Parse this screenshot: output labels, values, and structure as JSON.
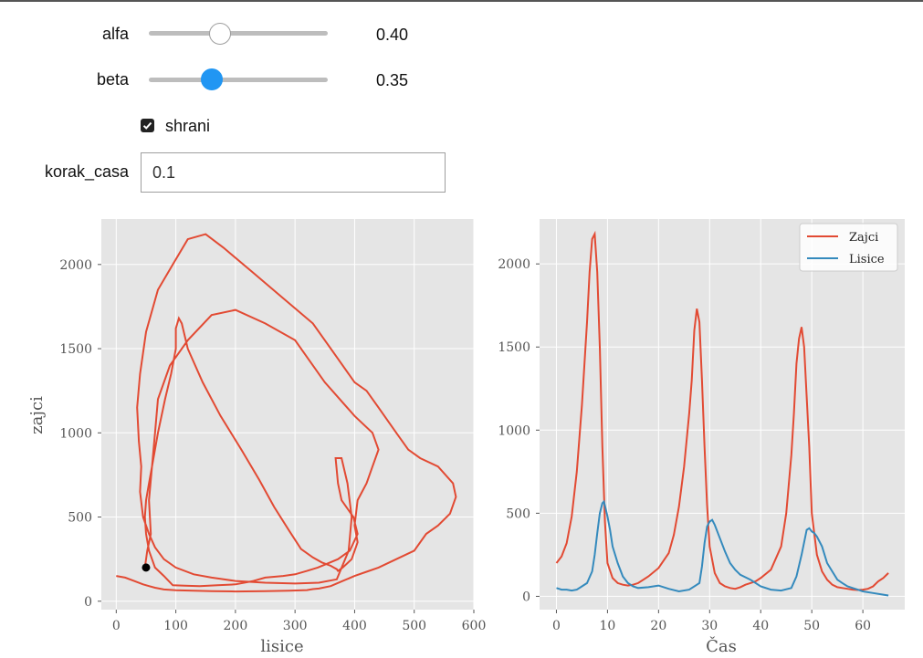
{
  "controls": {
    "alfa": {
      "label": "alfa",
      "value": 0.4,
      "value_text": "0.40",
      "min": 0,
      "max": 1
    },
    "beta": {
      "label": "beta",
      "value": 0.35,
      "value_text": "0.35",
      "min": 0,
      "max": 1
    },
    "shrani": {
      "label": "shrani",
      "checked": true
    },
    "korak_casa": {
      "label": "korak_casa",
      "value": "0.1"
    }
  },
  "colors": {
    "zajci": "#e24a33",
    "lisice": "#348abd",
    "plot_bg": "#e5e5e5",
    "grid": "#ffffff",
    "slider_active": "#2196f3"
  },
  "chart_data": [
    {
      "type": "line",
      "xlabel": "lisice",
      "ylabel": "zajci",
      "xlim": [
        -25,
        600
      ],
      "ylim": [
        -50,
        2270
      ],
      "xticks": [
        0,
        100,
        200,
        300,
        400,
        500,
        600
      ],
      "yticks": [
        0,
        500,
        1000,
        1500,
        2000
      ],
      "grid": true,
      "series": [
        {
          "x": [
            0,
            15,
            30,
            45,
            55,
            65,
            80,
            100,
            130,
            160,
            200,
            250,
            290,
            320,
            330,
            340,
            360,
            380,
            400,
            420,
            440,
            470,
            500,
            520,
            540,
            560,
            570,
            565,
            540,
            510,
            490,
            470,
            460,
            440,
            420,
            400,
            370,
            330,
            280,
            230,
            180,
            150,
            120,
            95,
            70,
            50,
            40,
            35,
            38,
            42,
            40,
            45,
            55,
            65,
            80,
            100,
            130,
            160,
            200,
            250,
            300,
            340,
            370,
            390,
            395,
            388,
            378,
            368,
            372,
            378,
            388,
            398,
            405,
            392,
            372,
            352,
            338,
            320,
            300,
            280,
            250,
            230,
            200,
            170,
            140,
            115,
            95,
            80,
            65,
            55,
            50,
            48,
            50,
            55,
            60,
            65,
            70,
            90,
            120,
            160,
            200,
            250,
            300,
            350,
            400,
            430,
            440,
            430,
            420,
            405,
            400,
            405,
            395,
            380,
            372,
            370,
            365,
            360,
            345,
            330,
            310,
            290,
            265,
            240,
            210,
            175,
            145,
            120,
            110,
            105,
            100,
            100,
            92,
            82,
            70,
            60,
            55,
            58,
            52,
            48
          ],
          "y": [
            150,
            140,
            120,
            100,
            90,
            80,
            70,
            65,
            62,
            60,
            58,
            60,
            62,
            66,
            72,
            75,
            90,
            120,
            150,
            175,
            200,
            250,
            300,
            400,
            450,
            520,
            620,
            700,
            800,
            850,
            900,
            1000,
            1050,
            1150,
            1250,
            1300,
            1450,
            1650,
            1800,
            1950,
            2100,
            2180,
            2150,
            2000,
            1850,
            1600,
            1350,
            1150,
            950,
            800,
            650,
            500,
            400,
            320,
            250,
            200,
            160,
            140,
            120,
            110,
            105,
            110,
            130,
            300,
            500,
            700,
            850,
            850,
            700,
            600,
            550,
            500,
            400,
            300,
            250,
            220,
            200,
            180,
            160,
            150,
            140,
            120,
            100,
            95,
            90,
            92,
            95,
            150,
            200,
            300,
            400,
            500,
            600,
            700,
            800,
            1000,
            1200,
            1400,
            1550,
            1700,
            1730,
            1650,
            1550,
            1300,
            1100,
            1000,
            900,
            800,
            700,
            600,
            450,
            350,
            250,
            200,
            180,
            190,
            200,
            210,
            230,
            260,
            310,
            420,
            560,
            720,
            900,
            1100,
            1300,
            1500,
            1650,
            1680,
            1620,
            1500,
            1350,
            1200,
            1000,
            800,
            600,
            400,
            300,
            200
          ]
        },
        {
          "marker_point": {
            "x": 50,
            "y": 200
          }
        }
      ]
    },
    {
      "type": "line",
      "xlabel": "Čas",
      "ylabel": "",
      "xlim": [
        -3.3,
        68.2
      ],
      "ylim": [
        -80,
        2270
      ],
      "xticks": [
        0,
        10,
        20,
        30,
        40,
        50,
        60
      ],
      "yticks": [
        0,
        500,
        1000,
        1500,
        2000
      ],
      "grid": true,
      "legend": {
        "position": "top-right",
        "entries": [
          "Zajci",
          "Lisice"
        ]
      },
      "series": [
        {
          "name": "Zajci",
          "x": [
            0,
            1,
            2,
            3,
            4,
            5,
            6,
            6.5,
            7,
            7.5,
            8,
            8.5,
            9,
            9.5,
            10,
            11,
            12,
            13,
            14,
            15,
            16,
            18,
            20,
            22,
            23,
            24,
            25,
            26,
            26.5,
            27,
            27.5,
            28,
            28.5,
            29,
            29.5,
            30,
            31,
            32,
            33,
            34,
            35,
            36,
            37,
            38,
            39,
            40,
            42,
            44,
            45,
            46,
            46.5,
            47,
            47.5,
            48,
            48.5,
            49,
            49.5,
            50,
            51,
            52,
            53,
            54,
            55,
            56,
            57,
            58,
            59,
            60,
            61,
            62,
            63,
            64,
            65
          ],
          "y": [
            200,
            240,
            320,
            480,
            750,
            1150,
            1650,
            1950,
            2150,
            2180,
            1950,
            1500,
            900,
            450,
            200,
            110,
            80,
            70,
            65,
            70,
            80,
            120,
            170,
            260,
            370,
            540,
            780,
            1100,
            1300,
            1600,
            1730,
            1650,
            1300,
            900,
            550,
            300,
            140,
            80,
            60,
            50,
            45,
            55,
            70,
            80,
            90,
            110,
            160,
            300,
            500,
            850,
            1100,
            1400,
            1550,
            1620,
            1500,
            1200,
            900,
            500,
            250,
            150,
            100,
            70,
            55,
            50,
            45,
            40,
            38,
            40,
            45,
            60,
            90,
            110,
            140
          ]
        },
        {
          "name": "Lisice",
          "x": [
            0,
            1,
            2,
            3,
            4,
            5,
            6,
            7,
            7.5,
            8,
            8.5,
            9,
            9.3,
            9.7,
            10,
            10.5,
            11,
            12,
            13,
            14,
            15,
            16,
            18,
            20,
            22,
            24,
            26,
            28,
            28.5,
            29,
            29.5,
            30,
            30.5,
            31,
            32,
            33,
            34,
            35,
            36,
            38,
            40,
            42,
            44,
            46,
            47,
            48,
            49,
            49.5,
            50,
            50.5,
            51,
            52,
            53,
            54,
            55,
            56,
            57,
            58,
            59,
            60,
            62,
            64,
            65
          ],
          "y": [
            50,
            40,
            40,
            35,
            40,
            60,
            80,
            150,
            250,
            380,
            500,
            560,
            570,
            520,
            480,
            400,
            300,
            200,
            120,
            80,
            60,
            50,
            55,
            65,
            45,
            30,
            40,
            80,
            180,
            320,
            420,
            450,
            460,
            430,
            350,
            270,
            200,
            160,
            130,
            100,
            60,
            40,
            35,
            50,
            120,
            250,
            400,
            410,
            390,
            380,
            360,
            300,
            200,
            150,
            100,
            80,
            60,
            50,
            40,
            30,
            20,
            10,
            5
          ]
        }
      ]
    }
  ]
}
